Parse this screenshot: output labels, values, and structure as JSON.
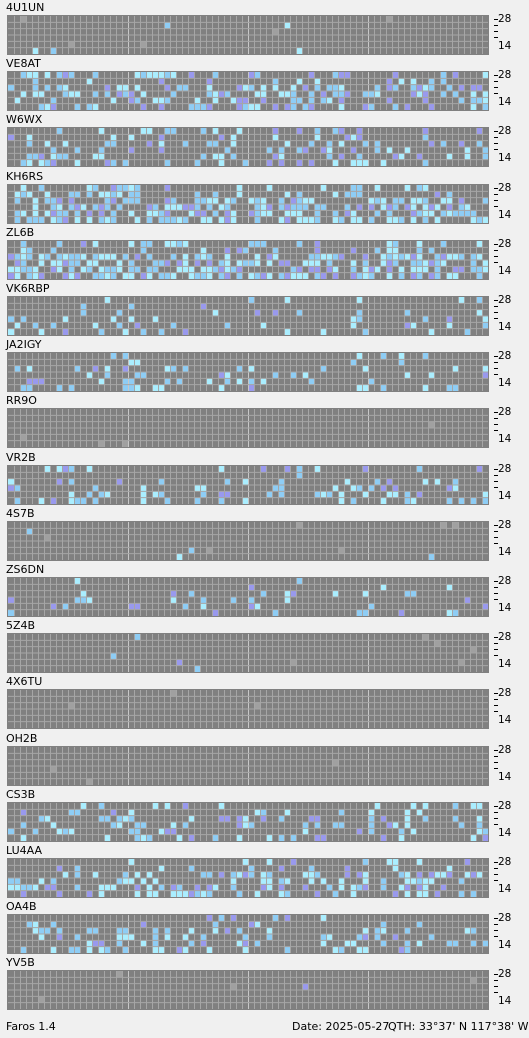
{
  "app": {
    "version_label": "Faros 1.4"
  },
  "status": {
    "date_label": "Date:",
    "date": "2025-05-27",
    "qth_label": "QTH:",
    "qth_lat": "33°37' N",
    "qth_lon": "117°38' W"
  },
  "bands": {
    "high_label": "28",
    "low_label": "14"
  },
  "colors": {
    "grid_bg": "#808080",
    "grid_line": "#a6a6a6",
    "grid_major": "#c8c8c8",
    "cell_light": "#aaeeff",
    "cell_blue": "#8ecdf5",
    "cell_purple": "#9999ee",
    "cell_gray": "#a0a0a0"
  },
  "beacons": [
    {
      "call": "4U1UN",
      "cells": []
    },
    {
      "call": "VE8AT",
      "cells": []
    },
    {
      "call": "W6WX",
      "cells": []
    },
    {
      "call": "KH6RS",
      "cells": []
    },
    {
      "call": "ZL6B",
      "cells": []
    },
    {
      "call": "VK6RBP",
      "cells": []
    },
    {
      "call": "JA2IGY",
      "cells": []
    },
    {
      "call": "RR9O",
      "cells": []
    },
    {
      "call": "VR2B",
      "cells": []
    },
    {
      "call": "4S7B",
      "cells": []
    },
    {
      "call": "ZS6DN",
      "cells": []
    },
    {
      "call": "5Z4B",
      "cells": []
    },
    {
      "call": "4X6TU",
      "cells": []
    },
    {
      "call": "OH2B",
      "cells": []
    },
    {
      "call": "CS3B",
      "cells": []
    },
    {
      "call": "LU4AA",
      "cells": []
    },
    {
      "call": "OA4B",
      "cells": []
    },
    {
      "call": "YV5B",
      "cells": []
    }
  ]
}
